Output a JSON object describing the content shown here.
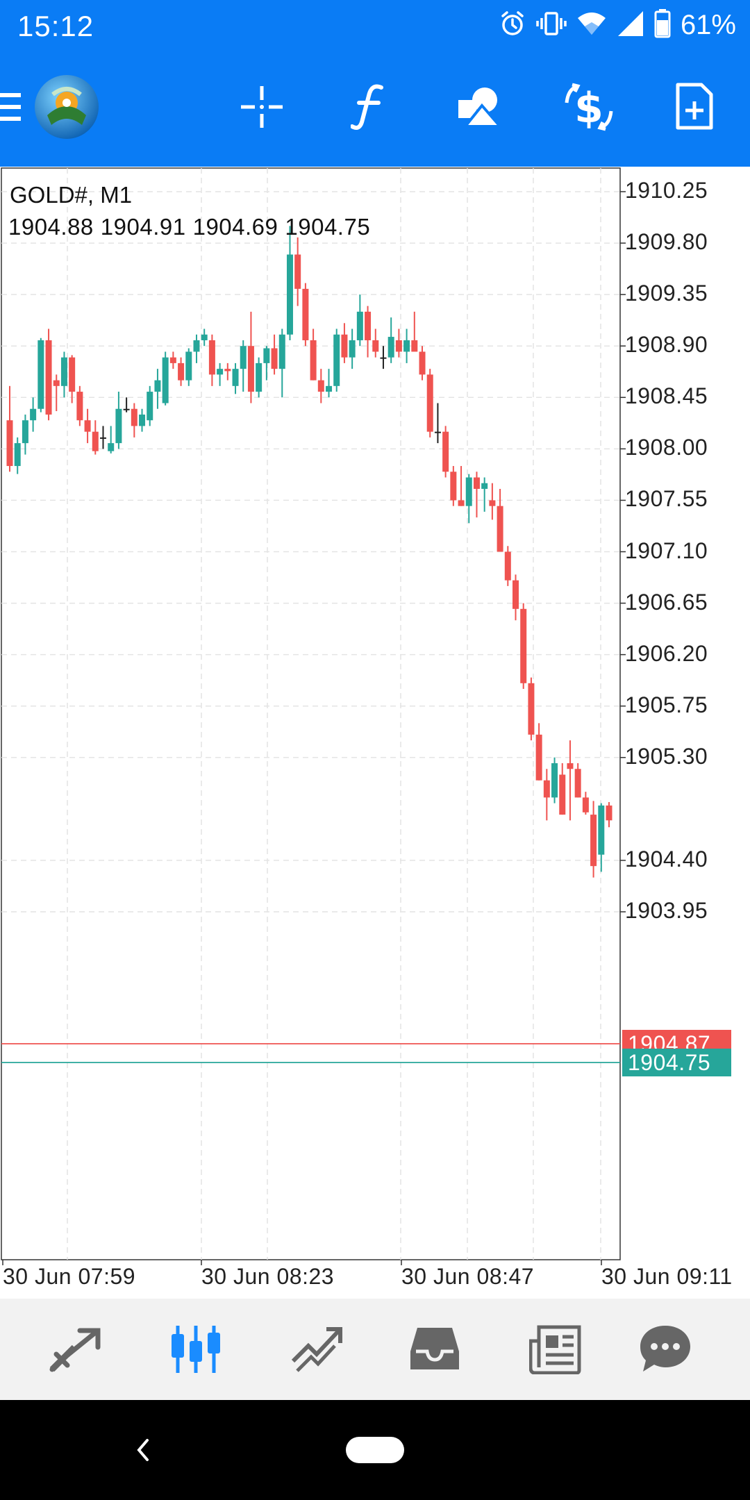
{
  "status_bar": {
    "time": "15:12",
    "battery": "61%",
    "icons": [
      "alarm-icon",
      "vibrate-icon",
      "wifi-icon",
      "signal-icon",
      "battery-icon"
    ]
  },
  "app_bar": {
    "buttons": [
      "menu-icon",
      "metatrader-logo",
      "crosshair-icon",
      "indicators-icon",
      "objects-icon",
      "symbols-icon",
      "new-order-icon"
    ]
  },
  "chart": {
    "symbol": "GOLD#, M1",
    "ohlc": [
      "1904.88",
      "1904.91",
      "1904.69",
      "1904.75"
    ],
    "bid_price": "1904.87",
    "ask_price": "1904.75",
    "colors": {
      "bull": "#26a69a",
      "bear": "#ef5350",
      "bid_line": "#ef5350",
      "ask_line": "#26a69a"
    }
  },
  "chart_data": {
    "type": "candlestick",
    "title": "GOLD#, M1",
    "y_ticks": [
      "1910.25",
      "1909.80",
      "1909.35",
      "1908.90",
      "1908.45",
      "1908.00",
      "1907.55",
      "1907.10",
      "1906.65",
      "1906.20",
      "1905.75",
      "1905.30",
      "1904.40",
      "1903.95"
    ],
    "x_ticks": [
      "30 Jun 07:59",
      "30 Jun 08:23",
      "30 Jun 08:47",
      "30 Jun 09:11"
    ],
    "ylim": [
      1903.6,
      1910.5
    ],
    "candles": [
      [
        1908.25,
        1908.55,
        1907.8,
        1907.85
      ],
      [
        1907.85,
        1908.1,
        1907.78,
        1908.05
      ],
      [
        1908.05,
        1908.3,
        1907.95,
        1908.25
      ],
      [
        1908.25,
        1908.45,
        1908.15,
        1908.35
      ],
      [
        1908.35,
        1908.97,
        1908.32,
        1908.95
      ],
      [
        1908.95,
        1909.05,
        1908.25,
        1908.3
      ],
      [
        1908.6,
        1908.65,
        1908.33,
        1908.55
      ],
      [
        1908.55,
        1908.85,
        1908.45,
        1908.8
      ],
      [
        1908.8,
        1908.82,
        1908.4,
        1908.5
      ],
      [
        1908.5,
        1908.55,
        1908.2,
        1908.25
      ],
      [
        1908.25,
        1908.35,
        1908.05,
        1908.15
      ],
      [
        1908.15,
        1908.25,
        1907.95,
        1907.98
      ],
      [
        1908.1,
        1908.2,
        1908.0,
        1908.1
      ],
      [
        1907.98,
        1908.2,
        1907.96,
        1908.05
      ],
      [
        1908.05,
        1908.5,
        1908.0,
        1908.35
      ],
      [
        1908.35,
        1908.45,
        1908.32,
        1908.35
      ],
      [
        1908.35,
        1908.4,
        1908.1,
        1908.2
      ],
      [
        1908.2,
        1908.35,
        1908.15,
        1908.3
      ],
      [
        1908.25,
        1908.55,
        1908.2,
        1908.5
      ],
      [
        1908.5,
        1908.7,
        1908.35,
        1908.6
      ],
      [
        1908.4,
        1908.85,
        1908.38,
        1908.8
      ],
      [
        1908.8,
        1908.85,
        1908.7,
        1908.75
      ],
      [
        1908.75,
        1908.8,
        1908.55,
        1908.6
      ],
      [
        1908.6,
        1908.88,
        1908.55,
        1908.85
      ],
      [
        1908.85,
        1909.0,
        1908.75,
        1908.95
      ],
      [
        1908.95,
        1909.05,
        1908.9,
        1909.0
      ],
      [
        1908.95,
        1909.0,
        1908.55,
        1908.65
      ],
      [
        1908.65,
        1908.75,
        1908.55,
        1908.7
      ],
      [
        1908.7,
        1908.75,
        1908.6,
        1908.68
      ],
      [
        1908.55,
        1908.75,
        1908.48,
        1908.7
      ],
      [
        1908.7,
        1908.95,
        1908.5,
        1908.9
      ],
      [
        1908.9,
        1909.2,
        1908.4,
        1908.5
      ],
      [
        1908.5,
        1908.8,
        1908.45,
        1908.75
      ],
      [
        1908.75,
        1908.9,
        1908.6,
        1908.88
      ],
      [
        1908.88,
        1909.0,
        1908.65,
        1908.7
      ],
      [
        1908.7,
        1909.05,
        1908.45,
        1909.0
      ],
      [
        1909.0,
        1909.95,
        1908.95,
        1909.7
      ],
      [
        1909.7,
        1909.85,
        1909.25,
        1909.4
      ],
      [
        1909.4,
        1909.45,
        1908.9,
        1908.95
      ],
      [
        1908.95,
        1909.05,
        1908.6,
        1908.6
      ],
      [
        1908.6,
        1908.7,
        1908.4,
        1908.5
      ],
      [
        1908.5,
        1908.7,
        1908.45,
        1908.55
      ],
      [
        1908.55,
        1909.05,
        1908.5,
        1909.0
      ],
      [
        1909.0,
        1909.1,
        1908.75,
        1908.8
      ],
      [
        1908.8,
        1909.05,
        1908.7,
        1908.95
      ],
      [
        1908.95,
        1909.35,
        1908.9,
        1909.2
      ],
      [
        1909.2,
        1909.25,
        1908.8,
        1908.95
      ],
      [
        1908.95,
        1909.05,
        1908.8,
        1908.85
      ],
      [
        1908.8,
        1908.9,
        1908.7,
        1908.8
      ],
      [
        1908.8,
        1909.15,
        1908.75,
        1908.98
      ],
      [
        1908.95,
        1909.05,
        1908.8,
        1908.85
      ],
      [
        1908.85,
        1909.05,
        1908.75,
        1908.95
      ],
      [
        1908.95,
        1909.2,
        1908.9,
        1908.85
      ],
      [
        1908.85,
        1908.9,
        1908.6,
        1908.65
      ],
      [
        1908.65,
        1908.7,
        1908.1,
        1908.15
      ],
      [
        1908.15,
        1908.4,
        1908.05,
        1908.15
      ],
      [
        1908.15,
        1908.2,
        1907.75,
        1907.8
      ],
      [
        1907.8,
        1907.85,
        1907.5,
        1907.55
      ],
      [
        1907.55,
        1907.85,
        1907.5,
        1907.5
      ],
      [
        1907.5,
        1907.78,
        1907.35,
        1907.75
      ],
      [
        1907.75,
        1907.8,
        1907.4,
        1907.65
      ],
      [
        1907.65,
        1907.75,
        1907.45,
        1907.7
      ],
      [
        1907.55,
        1907.7,
        1907.38,
        1907.5
      ],
      [
        1907.5,
        1907.65,
        1907.1,
        1907.1
      ],
      [
        1907.1,
        1907.15,
        1906.8,
        1906.85
      ],
      [
        1906.85,
        1906.9,
        1906.5,
        1906.6
      ],
      [
        1906.6,
        1906.65,
        1905.9,
        1905.95
      ],
      [
        1905.95,
        1906.0,
        1905.45,
        1905.5
      ],
      [
        1905.5,
        1905.6,
        1905.1,
        1905.1
      ],
      [
        1905.1,
        1905.2,
        1904.75,
        1904.95
      ],
      [
        1904.95,
        1905.3,
        1904.9,
        1905.25
      ],
      [
        1905.15,
        1905.25,
        1904.8,
        1904.8
      ],
      [
        1905.25,
        1905.45,
        1904.75,
        1905.2
      ],
      [
        1905.2,
        1905.25,
        1904.95,
        1904.95
      ],
      [
        1904.95,
        1905.0,
        1904.8,
        1904.82
      ],
      [
        1904.8,
        1904.92,
        1904.25,
        1904.35
      ],
      [
        1904.45,
        1904.9,
        1904.3,
        1904.88
      ],
      [
        1904.88,
        1904.91,
        1904.69,
        1904.75
      ]
    ]
  },
  "bottom_nav": {
    "items": [
      "quotes-icon",
      "chart-icon",
      "trade-icon",
      "history-icon",
      "news-icon",
      "chat-icon"
    ],
    "active_color": "#1a8cff",
    "inactive_color": "#666666"
  }
}
